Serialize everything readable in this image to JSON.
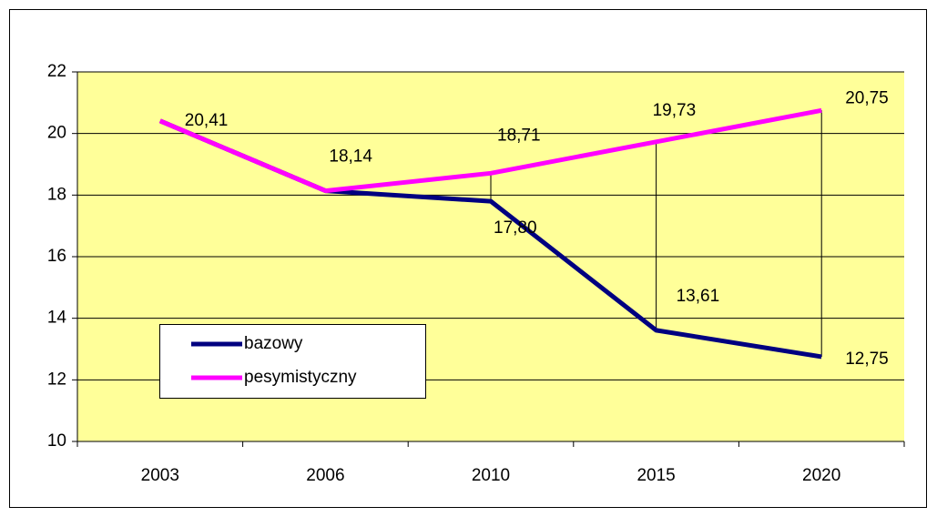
{
  "chart_data": {
    "type": "line",
    "categories": [
      "2003",
      "2006",
      "2010",
      "2015",
      "2020"
    ],
    "series": [
      {
        "name": "bazowy",
        "color": "#000080",
        "values": [
          20.41,
          18.14,
          17.8,
          13.61,
          12.75
        ],
        "value_labels": [
          null,
          null,
          "17,80",
          "13,61",
          "12,75"
        ]
      },
      {
        "name": "pesymistyczny",
        "color": "#ff00ff",
        "values": [
          20.41,
          18.14,
          18.71,
          19.73,
          20.75
        ],
        "value_labels": [
          "20,41",
          "18,14",
          "18,71",
          "19,73",
          "20,75"
        ]
      }
    ],
    "ylim": [
      10,
      22
    ],
    "yticks": [
      10,
      12,
      14,
      16,
      18,
      20,
      22
    ],
    "grid": true,
    "plot_background": "#ffff99",
    "hi_lo_lines": true,
    "legend": "lower left"
  }
}
